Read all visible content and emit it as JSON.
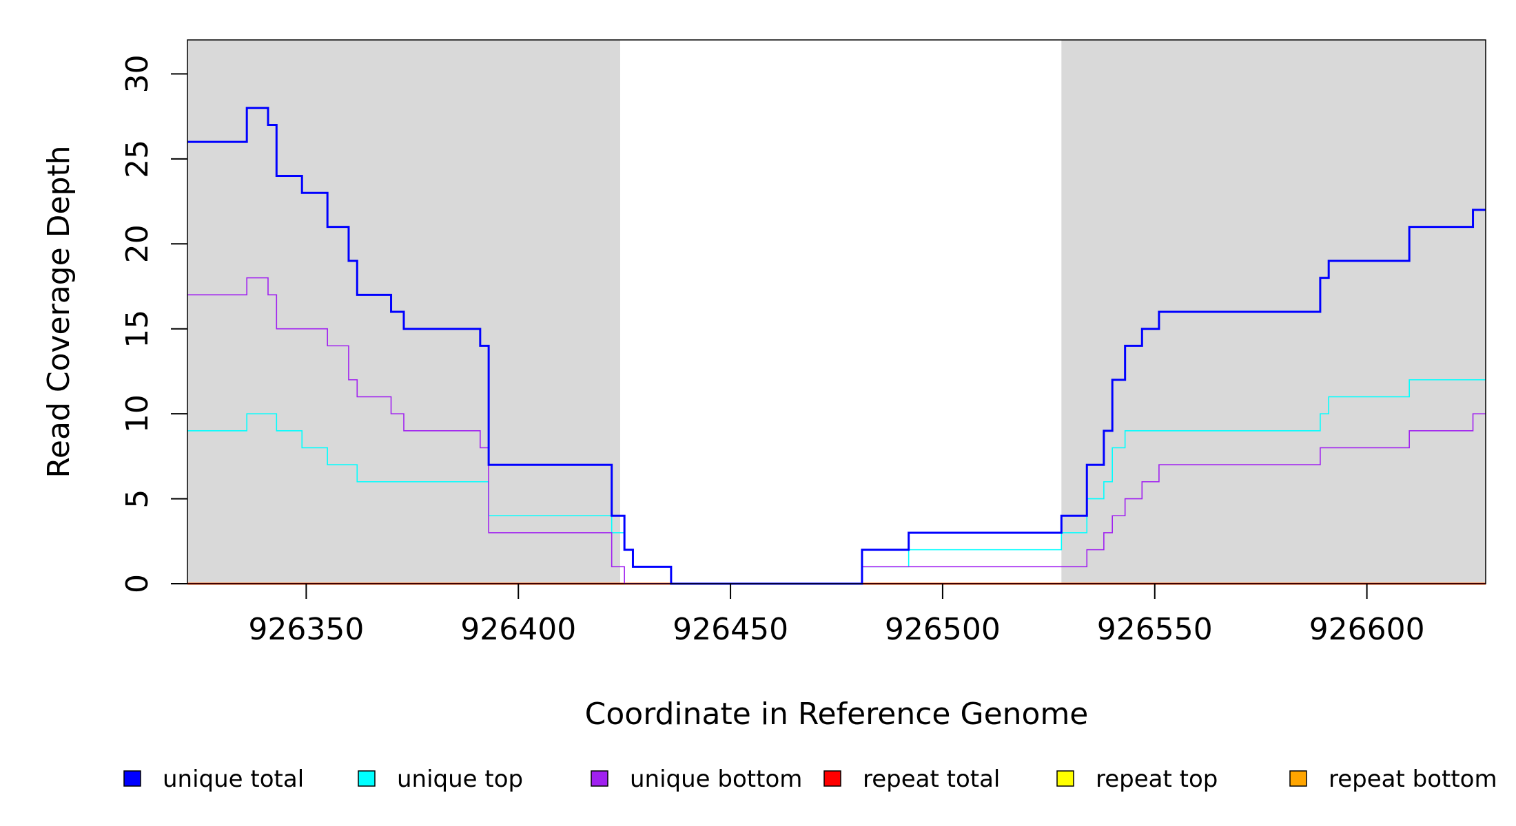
{
  "chart_data": {
    "type": "line",
    "title": "",
    "xlabel": "Coordinate in Reference Genome",
    "ylabel": "Read Coverage Depth",
    "xlim": [
      926322,
      926628
    ],
    "ylim": [
      0,
      32
    ],
    "x_ticks": [
      926350,
      926400,
      926450,
      926500,
      926550,
      926600
    ],
    "y_ticks": [
      0,
      5,
      10,
      15,
      20,
      25,
      30
    ],
    "grid": false,
    "legend_position": "bottom",
    "shaded_regions": [
      {
        "x_start": 926322,
        "x_end": 926424,
        "color": "#d9d9d9"
      },
      {
        "x_start": 926528,
        "x_end": 926628,
        "color": "#d9d9d9"
      }
    ],
    "series": [
      {
        "name": "unique total",
        "color": "#0000ff",
        "points": [
          [
            926322,
            26
          ],
          [
            926336,
            28
          ],
          [
            926341,
            27
          ],
          [
            926343,
            24
          ],
          [
            926349,
            23
          ],
          [
            926355,
            21
          ],
          [
            926360,
            19
          ],
          [
            926362,
            17
          ],
          [
            926370,
            16
          ],
          [
            926373,
            15
          ],
          [
            926391,
            14
          ],
          [
            926393,
            7
          ],
          [
            926422,
            4
          ],
          [
            926425,
            2
          ],
          [
            926427,
            1
          ],
          [
            926436,
            0
          ],
          [
            926481,
            2
          ],
          [
            926492,
            3
          ],
          [
            926528,
            4
          ],
          [
            926534,
            7
          ],
          [
            926538,
            9
          ],
          [
            926540,
            12
          ],
          [
            926543,
            14
          ],
          [
            926547,
            15
          ],
          [
            926551,
            16
          ],
          [
            926589,
            18
          ],
          [
            926591,
            19
          ],
          [
            926610,
            21
          ],
          [
            926625,
            22
          ],
          [
            926628,
            22
          ]
        ]
      },
      {
        "name": "unique top",
        "color": "#00ffff",
        "points": [
          [
            926322,
            9
          ],
          [
            926336,
            10
          ],
          [
            926343,
            9
          ],
          [
            926349,
            8
          ],
          [
            926355,
            7
          ],
          [
            926362,
            6
          ],
          [
            926393,
            4
          ],
          [
            926422,
            3
          ],
          [
            926425,
            2
          ],
          [
            926427,
            1
          ],
          [
            926436,
            0
          ],
          [
            926481,
            1
          ],
          [
            926492,
            2
          ],
          [
            926528,
            3
          ],
          [
            926534,
            5
          ],
          [
            926538,
            6
          ],
          [
            926540,
            8
          ],
          [
            926543,
            9
          ],
          [
            926589,
            10
          ],
          [
            926591,
            11
          ],
          [
            926610,
            12
          ],
          [
            926628,
            12
          ]
        ]
      },
      {
        "name": "unique bottom",
        "color": "#a020f0",
        "points": [
          [
            926322,
            17
          ],
          [
            926336,
            18
          ],
          [
            926341,
            17
          ],
          [
            926343,
            15
          ],
          [
            926355,
            14
          ],
          [
            926360,
            12
          ],
          [
            926362,
            11
          ],
          [
            926370,
            10
          ],
          [
            926373,
            9
          ],
          [
            926391,
            8
          ],
          [
            926393,
            3
          ],
          [
            926422,
            1
          ],
          [
            926425,
            0
          ],
          [
            926481,
            1
          ],
          [
            926534,
            2
          ],
          [
            926538,
            3
          ],
          [
            926540,
            4
          ],
          [
            926543,
            5
          ],
          [
            926547,
            6
          ],
          [
            926551,
            7
          ],
          [
            926589,
            8
          ],
          [
            926610,
            9
          ],
          [
            926625,
            10
          ],
          [
            926628,
            10
          ]
        ]
      },
      {
        "name": "repeat total",
        "color": "#ff0000",
        "points": [
          [
            926322,
            0
          ],
          [
            926628,
            0
          ]
        ]
      },
      {
        "name": "repeat top",
        "color": "#ffff00",
        "points": [
          [
            926322,
            0
          ],
          [
            926628,
            0
          ]
        ]
      },
      {
        "name": "repeat bottom",
        "color": "#ffa500",
        "points": [
          [
            926322,
            0
          ],
          [
            926628,
            0
          ]
        ]
      }
    ]
  }
}
